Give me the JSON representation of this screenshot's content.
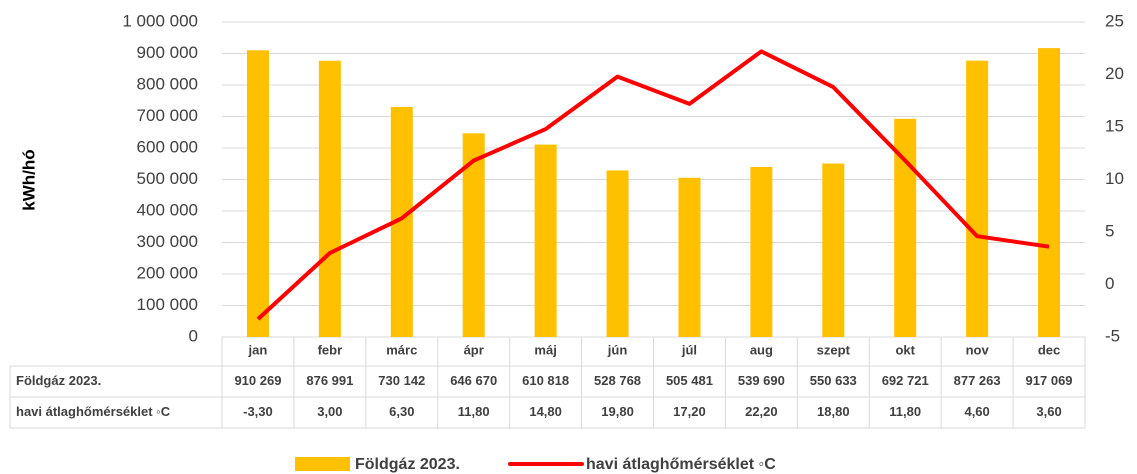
{
  "chart_data": {
    "type": "bar_line",
    "ylabel": "kWh/hó",
    "categories": [
      "jan",
      "febr",
      "márc",
      "ápr",
      "máj",
      "jún",
      "júl",
      "aug",
      "szept",
      "okt",
      "nov",
      "dec"
    ],
    "series": [
      {
        "name": "Földgáz 2023.",
        "color": "#ffc000",
        "type": "bar",
        "axis": "y",
        "values": [
          910269,
          876991,
          730142,
          646670,
          610818,
          528768,
          505481,
          539690,
          550633,
          692721,
          877263,
          917069
        ],
        "value_labels": [
          "910 269",
          "876 991",
          "730 142",
          "646 670",
          "610 818",
          "528 768",
          "505 481",
          "539 690",
          "550 633",
          "692 721",
          "877 263",
          "917 069"
        ]
      },
      {
        "name": "havi átlaghőmérséklet ◦C",
        "color": "#ff0000",
        "type": "line",
        "axis": "y2",
        "values": [
          -3.3,
          3,
          6.3,
          11.8,
          14.8,
          19.8,
          17.2,
          22.2,
          18.8,
          11.8,
          4.6,
          3.6
        ],
        "value_labels": [
          "-3,30",
          "3,00",
          "6,30",
          "11,80",
          "14,80",
          "19,80",
          "17,20",
          "22,20",
          "18,80",
          "11,80",
          "4,60",
          "3,60"
        ]
      }
    ],
    "ylim": [
      0,
      1000000
    ],
    "yticks": [
      0,
      {
        "value": 100000,
        "label": "100 000"
      },
      {
        "value": 200000,
        "label": "200 000"
      },
      {
        "value": 300000,
        "label": "300 000"
      },
      {
        "value": 400000,
        "label": "400 000"
      },
      {
        "value": 500000,
        "label": "500 000"
      },
      {
        "value": 600000,
        "label": "600 000"
      },
      {
        "value": 700000,
        "label": "700 000"
      },
      {
        "value": 800000,
        "label": "800 000"
      },
      {
        "value": 900000,
        "label": "900 000"
      },
      {
        "value": 1000000,
        "label": "1 000 000"
      }
    ],
    "y2lim": [
      -5,
      25
    ],
    "y2ticks": [
      -5,
      0,
      5,
      10,
      15,
      20,
      25
    ],
    "grid": true,
    "legend": "bottom"
  }
}
